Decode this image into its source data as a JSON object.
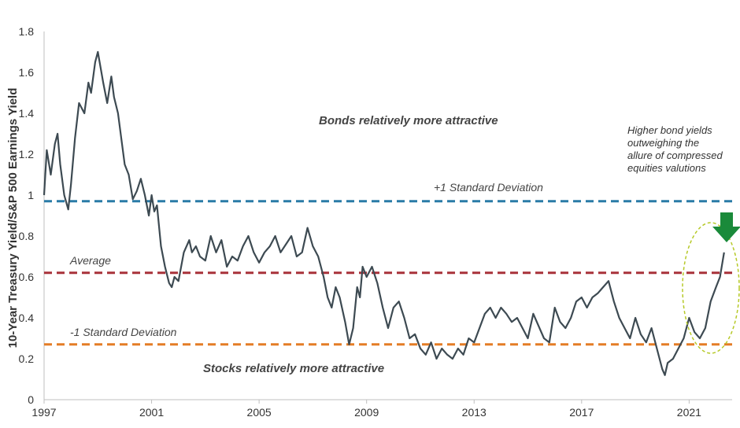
{
  "chart_data": {
    "type": "line",
    "ylabel": "10-Year Treasury Yield/S&P 500 Earnings Yield",
    "xlabel": "",
    "xlim": [
      1997,
      2022.6
    ],
    "ylim": [
      0,
      1.8
    ],
    "x_ticks": [
      "1997",
      "2001",
      "2005",
      "2009",
      "2013",
      "2017",
      "2021"
    ],
    "y_ticks": [
      "0",
      "0.2",
      "0.4",
      "0.6",
      "0.8",
      "1",
      "1.2",
      "1.4",
      "1.6",
      "1.8"
    ],
    "grid": false,
    "series": [
      {
        "color": "#3d4a52",
        "x": [
          1997.0,
          1997.1,
          1997.25,
          1997.4,
          1997.5,
          1997.6,
          1997.75,
          1997.9,
          1998.0,
          1998.15,
          1998.3,
          1998.5,
          1998.65,
          1998.75,
          1998.9,
          1999.0,
          1999.2,
          1999.35,
          1999.5,
          1999.6,
          1999.75,
          1999.9,
          2000.0,
          2000.15,
          2000.3,
          2000.45,
          2000.6,
          2000.75,
          2000.9,
          2001.0,
          2001.1,
          2001.2,
          2001.35,
          2001.5,
          2001.65,
          2001.75,
          2001.85,
          2002.0,
          2002.2,
          2002.4,
          2002.5,
          2002.65,
          2002.8,
          2003.0,
          2003.2,
          2003.4,
          2003.6,
          2003.8,
          2004.0,
          2004.2,
          2004.4,
          2004.6,
          2004.8,
          2005.0,
          2005.2,
          2005.4,
          2005.6,
          2005.8,
          2006.0,
          2006.2,
          2006.4,
          2006.6,
          2006.8,
          2007.0,
          2007.2,
          2007.4,
          2007.55,
          2007.7,
          2007.85,
          2008.0,
          2008.2,
          2008.35,
          2008.5,
          2008.65,
          2008.75,
          2008.85,
          2009.0,
          2009.2,
          2009.4,
          2009.6,
          2009.8,
          2010.0,
          2010.2,
          2010.4,
          2010.6,
          2010.8,
          2011.0,
          2011.2,
          2011.4,
          2011.6,
          2011.8,
          2012.0,
          2012.2,
          2012.4,
          2012.6,
          2012.8,
          2013.0,
          2013.2,
          2013.4,
          2013.6,
          2013.8,
          2014.0,
          2014.2,
          2014.4,
          2014.6,
          2014.8,
          2015.0,
          2015.2,
          2015.4,
          2015.6,
          2015.8,
          2016.0,
          2016.2,
          2016.4,
          2016.6,
          2016.8,
          2017.0,
          2017.2,
          2017.4,
          2017.6,
          2017.8,
          2018.0,
          2018.2,
          2018.4,
          2018.6,
          2018.8,
          2019.0,
          2019.2,
          2019.4,
          2019.6,
          2019.8,
          2020.0,
          2020.1,
          2020.2,
          2020.4,
          2020.6,
          2020.8,
          2021.0,
          2021.2,
          2021.4,
          2021.6,
          2021.8,
          2022.0,
          2022.15,
          2022.3
        ],
        "values": [
          1.0,
          1.22,
          1.1,
          1.25,
          1.3,
          1.15,
          1.0,
          0.93,
          1.05,
          1.28,
          1.45,
          1.4,
          1.55,
          1.5,
          1.65,
          1.7,
          1.55,
          1.45,
          1.58,
          1.48,
          1.4,
          1.25,
          1.15,
          1.1,
          0.98,
          1.02,
          1.08,
          1.0,
          0.9,
          1.0,
          0.92,
          0.95,
          0.75,
          0.65,
          0.57,
          0.55,
          0.6,
          0.58,
          0.72,
          0.78,
          0.72,
          0.75,
          0.7,
          0.68,
          0.8,
          0.72,
          0.78,
          0.65,
          0.7,
          0.68,
          0.75,
          0.8,
          0.72,
          0.67,
          0.72,
          0.75,
          0.8,
          0.72,
          0.76,
          0.8,
          0.7,
          0.72,
          0.84,
          0.75,
          0.7,
          0.6,
          0.5,
          0.45,
          0.55,
          0.5,
          0.38,
          0.27,
          0.35,
          0.55,
          0.5,
          0.65,
          0.6,
          0.65,
          0.57,
          0.45,
          0.35,
          0.45,
          0.48,
          0.4,
          0.3,
          0.32,
          0.25,
          0.22,
          0.28,
          0.2,
          0.25,
          0.22,
          0.2,
          0.25,
          0.22,
          0.3,
          0.28,
          0.35,
          0.42,
          0.45,
          0.4,
          0.45,
          0.42,
          0.38,
          0.4,
          0.35,
          0.3,
          0.42,
          0.36,
          0.3,
          0.28,
          0.45,
          0.38,
          0.35,
          0.4,
          0.48,
          0.5,
          0.45,
          0.5,
          0.52,
          0.55,
          0.58,
          0.48,
          0.4,
          0.35,
          0.3,
          0.4,
          0.32,
          0.28,
          0.35,
          0.25,
          0.15,
          0.12,
          0.18,
          0.2,
          0.25,
          0.3,
          0.4,
          0.33,
          0.3,
          0.35,
          0.48,
          0.55,
          0.6,
          0.72
        ]
      }
    ],
    "reference_lines": [
      {
        "label": "+1 Standard Deviation",
        "value": 0.97,
        "color": "#2a7ba7"
      },
      {
        "label": "Average",
        "value": 0.62,
        "color": "#a8323a"
      },
      {
        "label": "-1 Standard Deviation",
        "value": 0.27,
        "color": "#e47d26"
      }
    ],
    "annotations": {
      "bonds": "Bonds relatively more attractive",
      "stocks": "Stocks relatively more attractive",
      "note_lines": [
        "Higher bond yields",
        "outweighing the",
        "allure of compressed",
        "equities valutions"
      ]
    },
    "highlight_color": "#b6c928",
    "arrow_color": "#1a8a3a"
  }
}
